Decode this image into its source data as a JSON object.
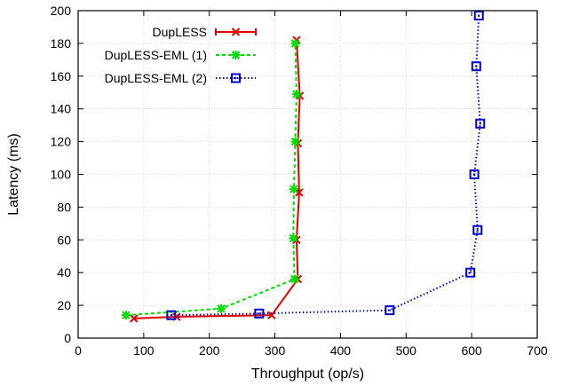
{
  "chart_data": {
    "type": "line",
    "title": "",
    "xlabel": "Throughput (op/s)",
    "ylabel": "Latency (ms)",
    "xlim": [
      0,
      700
    ],
    "ylim": [
      0,
      200
    ],
    "xticks": [
      0,
      100,
      200,
      300,
      400,
      500,
      600,
      700
    ],
    "yticks": [
      0,
      20,
      40,
      60,
      80,
      100,
      120,
      140,
      160,
      180,
      200
    ],
    "grid": true,
    "legend_position": "top-left",
    "series": [
      {
        "name": "DupLESS",
        "color": "#e00000",
        "line_style": "solid",
        "marker": "x-icon",
        "points": [
          {
            "x": 85,
            "y": 12
          },
          {
            "x": 150,
            "y": 13
          },
          {
            "x": 295,
            "y": 14
          },
          {
            "x": 335,
            "y": 36
          },
          {
            "x": 333,
            "y": 60
          },
          {
            "x": 337,
            "y": 89
          },
          {
            "x": 335,
            "y": 119
          },
          {
            "x": 338,
            "y": 148
          },
          {
            "x": 333,
            "y": 182
          }
        ]
      },
      {
        "name": "DupLESS-EML (1)",
        "color": "#00dd00",
        "line_style": "dashed",
        "marker": "asterisk-icon",
        "points": [
          {
            "x": 73,
            "y": 14
          },
          {
            "x": 218,
            "y": 18
          },
          {
            "x": 330,
            "y": 36
          },
          {
            "x": 328,
            "y": 61
          },
          {
            "x": 329,
            "y": 91
          },
          {
            "x": 331,
            "y": 120
          },
          {
            "x": 333,
            "y": 149
          },
          {
            "x": 331,
            "y": 180
          }
        ]
      },
      {
        "name": "DupLESS-EML (2)",
        "color": "#0000cc",
        "line_style": "dotted",
        "marker": "square-icon",
        "points": [
          {
            "x": 142,
            "y": 14
          },
          {
            "x": 276,
            "y": 15
          },
          {
            "x": 475,
            "y": 17
          },
          {
            "x": 598,
            "y": 40
          },
          {
            "x": 609,
            "y": 66
          },
          {
            "x": 604,
            "y": 100
          },
          {
            "x": 613,
            "y": 131
          },
          {
            "x": 607,
            "y": 166
          },
          {
            "x": 611,
            "y": 197
          }
        ]
      }
    ]
  }
}
